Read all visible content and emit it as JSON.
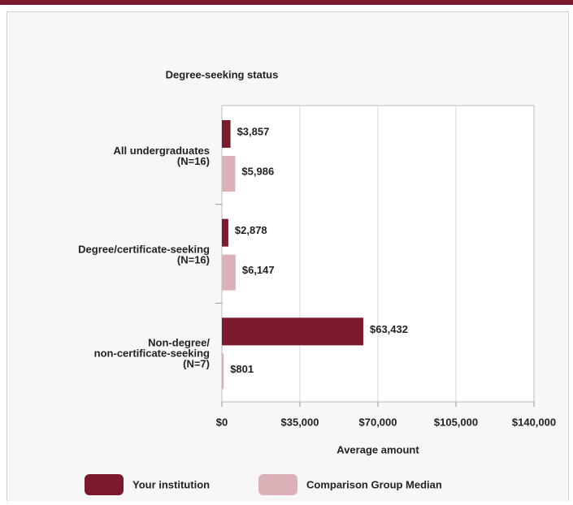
{
  "chart_data": {
    "type": "bar",
    "orientation": "horizontal",
    "title": "Degree-seeking status",
    "x_axis_label": "Average amount",
    "categories": [
      [
        "All undergraduates",
        "(N=16)"
      ],
      [
        "Degree/certificate-seeking",
        "(N=16)"
      ],
      [
        "Non-degree/",
        "non-certificate-seeking",
        "(N=7)"
      ]
    ],
    "series": [
      {
        "name": "Your institution",
        "color": "#7b1a2c",
        "values": [
          3857,
          2878,
          63432
        ],
        "value_labels": [
          "$3,857",
          "$2,878",
          "$63,432"
        ]
      },
      {
        "name": "Comparison Group Median",
        "color": "#dbb1b7",
        "values": [
          5986,
          6147,
          801
        ],
        "value_labels": [
          "$5,986",
          "$6,147",
          "$801"
        ]
      }
    ],
    "xlim": [
      0,
      140000
    ],
    "xticks": [
      {
        "value": 0,
        "label": "$0"
      },
      {
        "value": 35000,
        "label": "$35,000"
      },
      {
        "value": 70000,
        "label": "$70,000"
      },
      {
        "value": 105000,
        "label": "$105,000"
      },
      {
        "value": 140000,
        "label": "$140,000"
      }
    ],
    "grid": true,
    "legend": "bottom"
  }
}
